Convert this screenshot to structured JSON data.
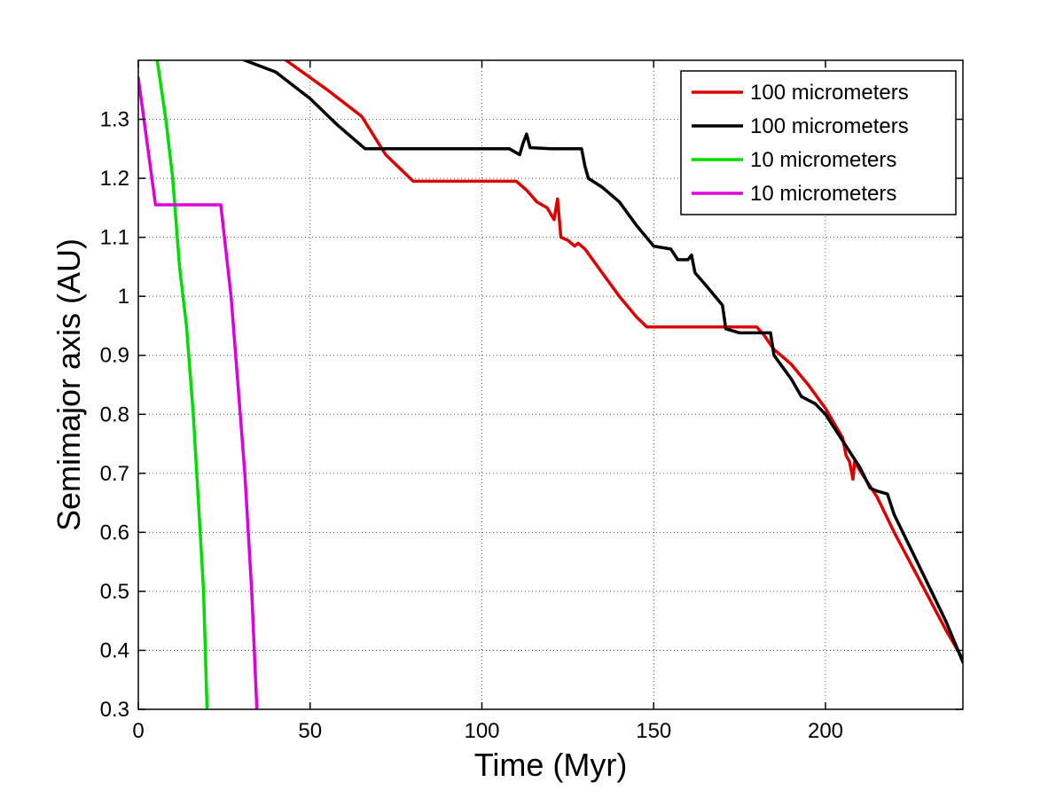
{
  "chart_data": {
    "type": "line",
    "title": "",
    "xlabel": "Time (Myr)",
    "ylabel": "Semimajor axis (AU)",
    "xlim": [
      0,
      240
    ],
    "ylim": [
      0.3,
      1.4
    ],
    "xticks": [
      0,
      50,
      100,
      150,
      200
    ],
    "yticks": [
      0.3,
      0.4,
      0.5,
      0.6,
      0.7,
      0.8,
      0.9,
      1,
      1.1,
      1.2,
      1.3
    ],
    "grid": true,
    "legend_position": "top-right",
    "series": [
      {
        "name": "100 micrometers",
        "color": "#dd0000",
        "points": [
          [
            43,
            1.4
          ],
          [
            55,
            1.35
          ],
          [
            65,
            1.305
          ],
          [
            72,
            1.24
          ],
          [
            80,
            1.195
          ],
          [
            95,
            1.195
          ],
          [
            110,
            1.195
          ],
          [
            113,
            1.18
          ],
          [
            116,
            1.16
          ],
          [
            119,
            1.15
          ],
          [
            121,
            1.13
          ],
          [
            122,
            1.165
          ],
          [
            123,
            1.1
          ],
          [
            125,
            1.095
          ],
          [
            127,
            1.085
          ],
          [
            128,
            1.09
          ],
          [
            130,
            1.08
          ],
          [
            135,
            1.04
          ],
          [
            140,
            1.0
          ],
          [
            145,
            0.965
          ],
          [
            148,
            0.948
          ],
          [
            160,
            0.948
          ],
          [
            172,
            0.948
          ],
          [
            180,
            0.948
          ],
          [
            182,
            0.935
          ],
          [
            185,
            0.91
          ],
          [
            190,
            0.885
          ],
          [
            195,
            0.85
          ],
          [
            200,
            0.81
          ],
          [
            205,
            0.76
          ],
          [
            206,
            0.73
          ],
          [
            207,
            0.72
          ],
          [
            208,
            0.69
          ],
          [
            208.5,
            0.72
          ],
          [
            210,
            0.705
          ],
          [
            215,
            0.66
          ],
          [
            220,
            0.6
          ],
          [
            225,
            0.545
          ],
          [
            230,
            0.49
          ],
          [
            235,
            0.435
          ],
          [
            240,
            0.385
          ]
        ]
      },
      {
        "name": "100 micrometers",
        "color": "#000000",
        "points": [
          [
            31,
            1.4
          ],
          [
            40,
            1.38
          ],
          [
            50,
            1.335
          ],
          [
            58,
            1.29
          ],
          [
            66,
            1.25
          ],
          [
            80,
            1.25
          ],
          [
            95,
            1.25
          ],
          [
            108,
            1.25
          ],
          [
            111,
            1.24
          ],
          [
            112,
            1.26
          ],
          [
            113,
            1.275
          ],
          [
            114,
            1.252
          ],
          [
            120,
            1.25
          ],
          [
            127,
            1.25
          ],
          [
            129,
            1.25
          ],
          [
            130,
            1.22
          ],
          [
            131,
            1.2
          ],
          [
            135,
            1.185
          ],
          [
            140,
            1.16
          ],
          [
            145,
            1.12
          ],
          [
            150,
            1.085
          ],
          [
            155,
            1.08
          ],
          [
            157,
            1.062
          ],
          [
            160,
            1.062
          ],
          [
            161,
            1.07
          ],
          [
            162,
            1.04
          ],
          [
            165,
            1.02
          ],
          [
            170,
            0.985
          ],
          [
            171,
            0.945
          ],
          [
            175,
            0.938
          ],
          [
            180,
            0.938
          ],
          [
            184,
            0.938
          ],
          [
            185,
            0.9
          ],
          [
            190,
            0.86
          ],
          [
            193,
            0.83
          ],
          [
            197,
            0.818
          ],
          [
            200,
            0.8
          ],
          [
            205,
            0.755
          ],
          [
            210,
            0.71
          ],
          [
            213,
            0.675
          ],
          [
            215,
            0.67
          ],
          [
            218,
            0.665
          ],
          [
            220,
            0.63
          ],
          [
            225,
            0.57
          ],
          [
            230,
            0.51
          ],
          [
            235,
            0.45
          ],
          [
            240,
            0.38
          ]
        ]
      },
      {
        "name": "10 micrometers",
        "color": "#00dd00",
        "points": [
          [
            5.5,
            1.4
          ],
          [
            8,
            1.3
          ],
          [
            10,
            1.2
          ],
          [
            12,
            1.05
          ],
          [
            14,
            0.95
          ],
          [
            16,
            0.8
          ],
          [
            18,
            0.6
          ],
          [
            19,
            0.5
          ],
          [
            20,
            0.3
          ]
        ]
      },
      {
        "name": "10 micrometers",
        "color": "#dd00dd",
        "points": [
          [
            0,
            1.37
          ],
          [
            5,
            1.155
          ],
          [
            24,
            1.155
          ],
          [
            27,
            1.0
          ],
          [
            29,
            0.85
          ],
          [
            31,
            0.7
          ],
          [
            33,
            0.5
          ],
          [
            34.5,
            0.3
          ]
        ]
      }
    ]
  }
}
